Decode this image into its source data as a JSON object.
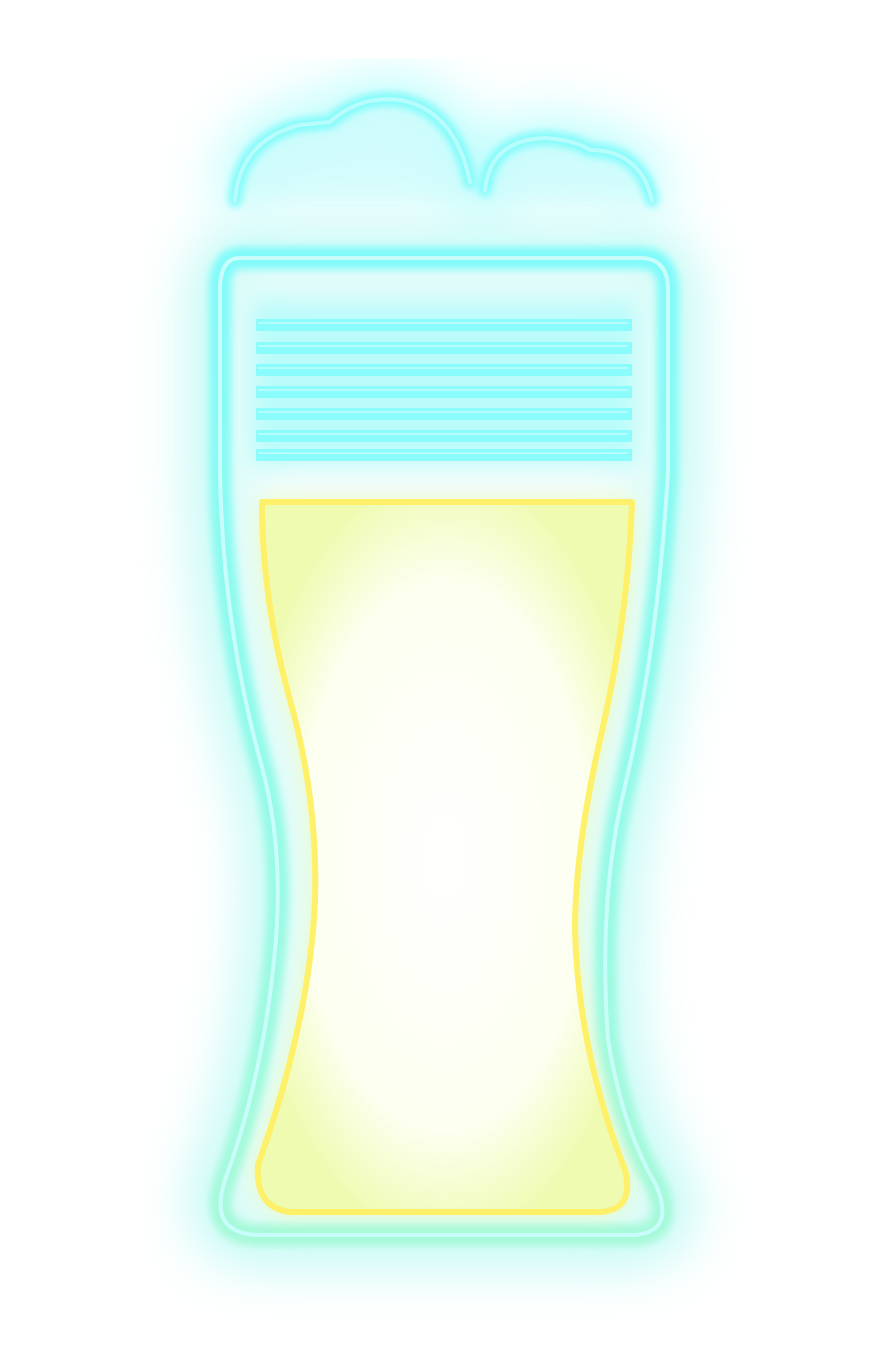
{
  "icon": {
    "name": "neon-beer-glass-icon",
    "colors": {
      "background": "#ffffff",
      "glass_outline": "#7ffbf9",
      "glass_glow": "#9ff7f2",
      "foam": "#80fbfa",
      "foam_fill": "#c8fbfb",
      "beer_outline": "#fff06a",
      "beer_glow": "#e9f99a",
      "beer_fill": "#ffffff"
    }
  }
}
